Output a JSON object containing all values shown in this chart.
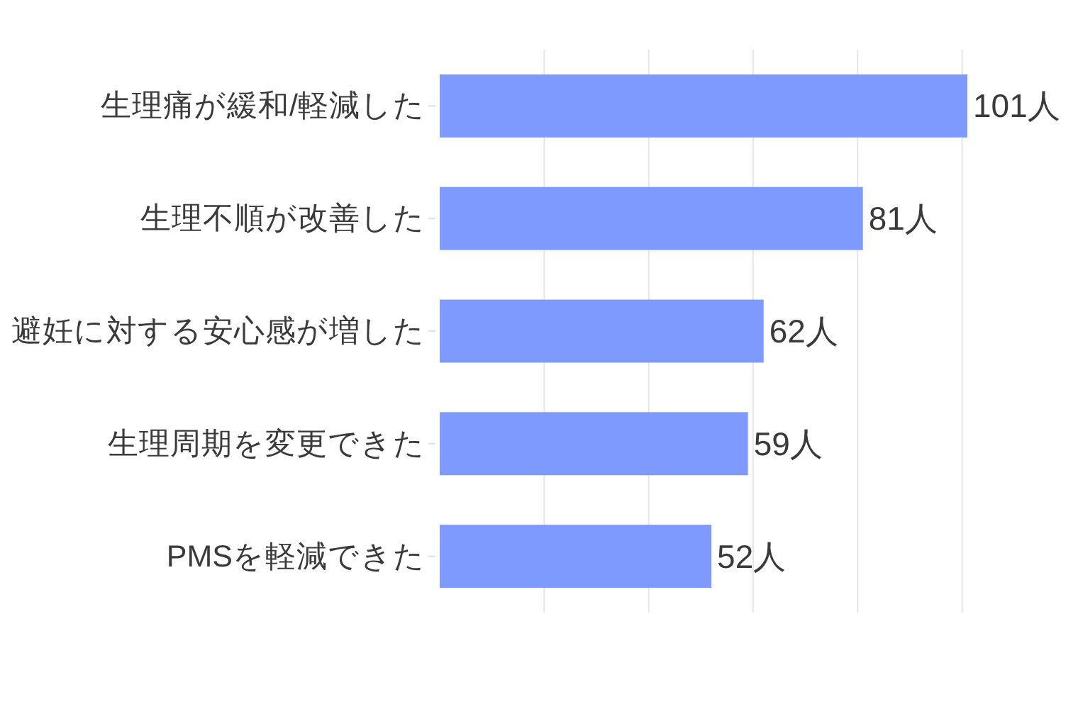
{
  "chart_data": {
    "type": "bar",
    "orientation": "horizontal",
    "categories": [
      "生理痛が緩和/軽減した",
      "生理不順が改善した",
      "避妊に対する安心感が増した",
      "生理周期を変更できた",
      "PMSを軽減できた"
    ],
    "values": [
      101,
      81,
      62,
      59,
      52
    ],
    "value_labels": [
      "101人",
      "81人",
      "62人",
      "59人",
      "52人"
    ],
    "color": "#7f9aff",
    "xticks": [
      {
        "value": 20,
        "label": null
      },
      {
        "value": 40,
        "label": null
      },
      {
        "value": 60,
        "label": null
      },
      {
        "value": 80,
        "label": null
      },
      {
        "value": 100,
        "label": null
      }
    ],
    "grid": "x",
    "tick_labels": "y"
  }
}
